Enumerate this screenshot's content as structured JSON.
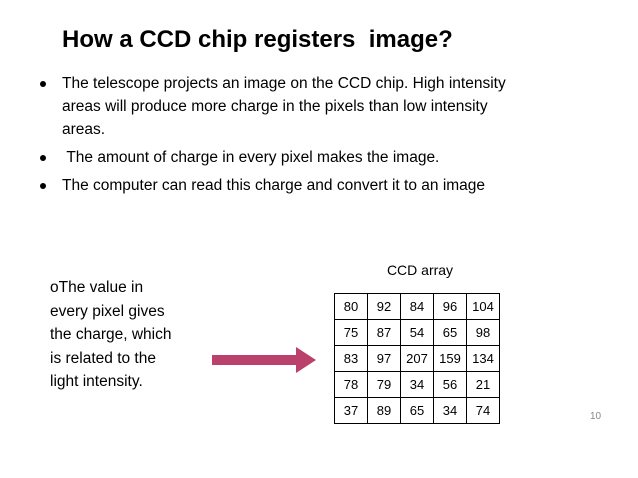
{
  "slide": {
    "title": "How a CCD chip registers  image?",
    "bullets": [
      "The telescope projects an image on the CCD chip. High intensity areas will produce more charge in the pixels than low intensity areas.",
      " The amount of charge in every pixel makes the image.",
      "The computer can read this charge and convert it to an image"
    ],
    "side_text": "oThe value in every pixel gives the charge, which is related to the light intensity.",
    "table": {
      "caption": "CCD array",
      "rows": [
        [
          80,
          92,
          84,
          96,
          104
        ],
        [
          75,
          87,
          54,
          65,
          98
        ],
        [
          83,
          97,
          207,
          159,
          134
        ],
        [
          78,
          79,
          34,
          56,
          21
        ],
        [
          37,
          89,
          65,
          34,
          74
        ]
      ]
    },
    "page_number": "10"
  }
}
